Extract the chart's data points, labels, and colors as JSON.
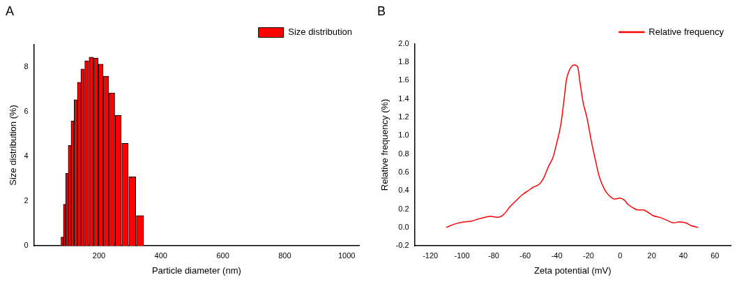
{
  "chart_data": [
    {
      "type": "bar",
      "title": "A",
      "xlabel": "Particle diameter (nm)",
      "ylabel": "Size distribution (%)",
      "x": [
        80.8,
        88.4,
        96,
        104.4,
        114.3,
        124.5,
        134.8,
        146.9,
        160.3,
        174.5,
        189.7,
        205.4,
        222,
        241.5,
        261.6,
        284,
        306.7,
        332.6
      ],
      "series": [
        {
          "name": "Size distribution",
          "color": "#ff0000",
          "values": [
            0.39,
            1.86,
            3.24,
            4.49,
            5.58,
            6.53,
            7.31,
            7.9,
            8.27,
            8.43,
            8.39,
            8.12,
            7.58,
            6.83,
            5.83,
            4.58,
            3.08,
            1.35
          ]
        }
      ],
      "xlim": [
        -10,
        1040
      ],
      "xticks": [
        200,
        400,
        600,
        800,
        1000
      ],
      "ylim": [
        0,
        9
      ],
      "yticks": [
        0,
        2,
        4,
        6,
        8
      ],
      "grid": false,
      "legend": "top right"
    },
    {
      "type": "line",
      "title": "B",
      "xlabel": "Zeta potential (mV)",
      "ylabel": "Relative frequency (%)",
      "x": [
        -110,
        -104.1,
        -98.9,
        -93.7,
        -90.2,
        -85.9,
        -81.6,
        -77.2,
        -73.7,
        -69.4,
        -65.9,
        -61.6,
        -58.1,
        -54.7,
        -51.2,
        -48.6,
        -45.1,
        -42.5,
        -39.9,
        -37.3,
        -35.6,
        -33.9,
        -32.1,
        -29,
        -26.9,
        -25.2,
        -23.5,
        -20.9,
        -18.3,
        -15.7,
        -13.1,
        -9.7,
        -7.1,
        -3.6,
        -0.1,
        2.5,
        5.1,
        8.6,
        11.2,
        14.6,
        17.2,
        20.7,
        25,
        29.4,
        33.7,
        37.2,
        41.5,
        45,
        49.3
      ],
      "series": [
        {
          "name": "Relative frequency",
          "color": "#ff0000",
          "values": [
            0,
            0.04,
            0.06,
            0.07,
            0.09,
            0.11,
            0.12,
            0.11,
            0.14,
            0.23,
            0.29,
            0.36,
            0.4,
            0.44,
            0.47,
            0.53,
            0.67,
            0.76,
            0.93,
            1.14,
            1.37,
            1.61,
            1.71,
            1.77,
            1.75,
            1.56,
            1.37,
            1.19,
            0.95,
            0.74,
            0.55,
            0.41,
            0.35,
            0.31,
            0.32,
            0.3,
            0.25,
            0.21,
            0.19,
            0.19,
            0.17,
            0.13,
            0.11,
            0.08,
            0.05,
            0.06,
            0.05,
            0.02,
            0
          ]
        }
      ],
      "xlim": [
        -130,
        70
      ],
      "xticks": [
        -120,
        -100,
        -80,
        -60,
        -40,
        -20,
        0,
        20,
        40,
        60
      ],
      "ylim": [
        -0.2,
        2.0
      ],
      "yticks": [
        -0.2,
        {
          "value": 0,
          "label": "0.0"
        },
        0.2,
        0.4,
        0.6,
        0.8,
        {
          "value": 1,
          "label": "1.0"
        },
        1.2,
        1.4,
        1.6,
        1.8,
        {
          "value": 2,
          "label": "2.0"
        }
      ],
      "grid": false,
      "legend": "top right",
      "marker": "none",
      "line_style": "solid"
    }
  ]
}
